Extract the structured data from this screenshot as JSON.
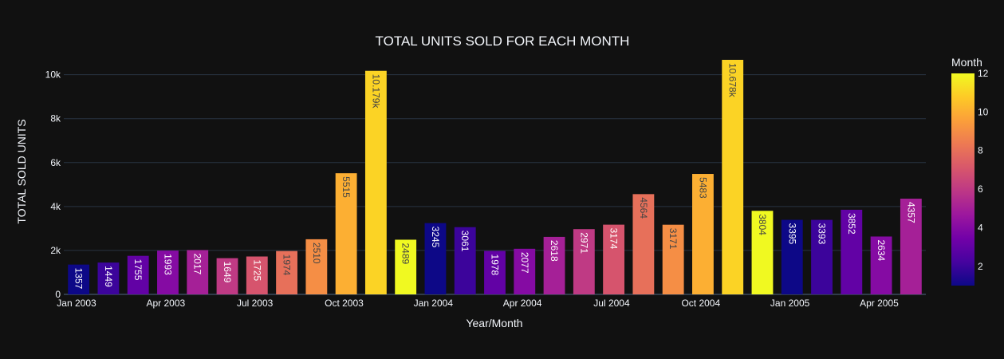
{
  "chart_data": {
    "type": "bar",
    "title": "TOTAL UNITS SOLD FOR EACH MONTH",
    "xlabel": "Year/Month",
    "ylabel": "TOTAL SOLD UNITS",
    "ylim": [
      0,
      10678
    ],
    "y_ticks": [
      0,
      2000,
      4000,
      6000,
      8000,
      10000
    ],
    "y_tick_labels": [
      "0",
      "2k",
      "4k",
      "6k",
      "8k",
      "10k"
    ],
    "x_tick_labels": [
      "Jan 2003",
      "Apr 2003",
      "Jul 2003",
      "Oct 2003",
      "Jan 2004",
      "Apr 2004",
      "Jul 2004",
      "Oct 2004",
      "Jan 2005",
      "Apr 2005"
    ],
    "x_tick_every": 3,
    "grid": true,
    "categories": [
      "2003-01",
      "2003-02",
      "2003-03",
      "2003-04",
      "2003-05",
      "2003-06",
      "2003-07",
      "2003-08",
      "2003-09",
      "2003-10",
      "2003-11",
      "2003-12",
      "2004-01",
      "2004-02",
      "2004-03",
      "2004-04",
      "2004-05",
      "2004-06",
      "2004-07",
      "2004-08",
      "2004-09",
      "2004-10",
      "2004-11",
      "2004-12",
      "2005-01",
      "2005-02",
      "2005-03",
      "2005-04",
      "2005-05"
    ],
    "values": [
      1357,
      1449,
      1755,
      1993,
      2017,
      1649,
      1725,
      1974,
      2510,
      5515,
      10179,
      2489,
      3245,
      3061,
      1978,
      2077,
      2618,
      2971,
      3174,
      4564,
      3171,
      5483,
      10678,
      3804,
      3395,
      3393,
      3852,
      2634,
      4357
    ],
    "data_labels": [
      "1357",
      "1449",
      "1755",
      "1993",
      "2017",
      "1649",
      "1725",
      "1974",
      "2510",
      "5515",
      "10.179k",
      "2489",
      "3245",
      "3061",
      "1978",
      "2077",
      "2618",
      "2971",
      "3174",
      "4564",
      "3171",
      "5483",
      "10.678k",
      "3804",
      "3395",
      "3393",
      "3852",
      "2634",
      "4357"
    ],
    "color_values": [
      1,
      2,
      3,
      4,
      5,
      6,
      7,
      8,
      9,
      10,
      11,
      12,
      1,
      2,
      3,
      4,
      5,
      6,
      7,
      8,
      9,
      10,
      11,
      12,
      1,
      2,
      3,
      4,
      5
    ],
    "colorbar": {
      "title": "Month",
      "range": [
        1,
        12
      ],
      "ticks": [
        2,
        4,
        6,
        8,
        10,
        12
      ],
      "tick_labels": [
        "2",
        "4",
        "6",
        "8",
        "10",
        "12"
      ],
      "colorscale": [
        "#0d0887",
        "#46039f",
        "#7201a8",
        "#9c179e",
        "#bd3786",
        "#d8576b",
        "#ed7953",
        "#fb9f3a",
        "#fdca26",
        "#f0f921"
      ]
    },
    "legend_placement": "right"
  },
  "colors": {
    "background": "#111111",
    "grid": "#283442",
    "text": "#f2f5fa",
    "axis_line": "#506784"
  }
}
